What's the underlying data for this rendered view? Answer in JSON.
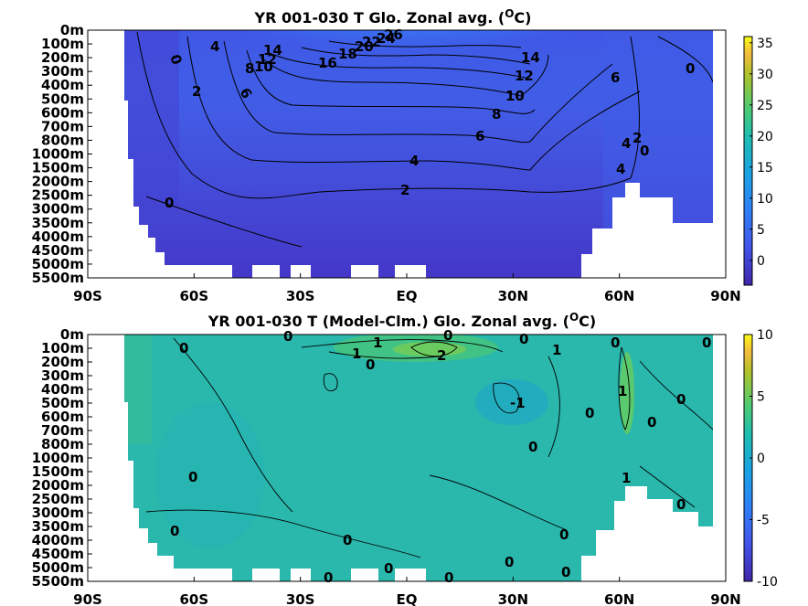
{
  "chart_data": [
    {
      "type": "heatmap",
      "title_main": "YR 001-030 T Glo. Zonal avg. (",
      "title_sup": "O",
      "title_tail": "C)",
      "x_ticks": [
        "90S",
        "60S",
        "30S",
        "EQ",
        "30N",
        "60N",
        "90N"
      ],
      "x_range": [
        -90,
        90
      ],
      "y_ticks": [
        "0m",
        "100m",
        "200m",
        "300m",
        "400m",
        "500m",
        "600m",
        "700m",
        "800m",
        "1000m",
        "1500m",
        "2000m",
        "2500m",
        "3000m",
        "3500m",
        "4000m",
        "4500m",
        "5000m",
        "5500m"
      ],
      "colorbar_ticks": [
        "35",
        "30",
        "25",
        "20",
        "15",
        "10",
        "5",
        "0"
      ],
      "colorbar_range": [
        -4,
        36
      ],
      "contour_labels": [
        "0",
        "2",
        "4",
        "6",
        "8",
        "10",
        "12",
        "14",
        "16",
        "18",
        "20",
        "22",
        "24",
        "26",
        "6",
        "8",
        "10",
        "12",
        "14",
        "4",
        "2",
        "0",
        "0",
        "6",
        "4",
        "2",
        "4",
        "0"
      ],
      "colors": {
        "low": "#3e26a8",
        "high": "#f9fb15",
        "land": "#ffffff"
      }
    },
    {
      "type": "heatmap",
      "title_main": "YR 001-030 T (Model-Clm.) Glo. Zonal avg. (",
      "title_sup": "O",
      "title_tail": "C)",
      "x_ticks": [
        "90S",
        "60S",
        "30S",
        "EQ",
        "30N",
        "60N",
        "90N"
      ],
      "x_range": [
        -90,
        90
      ],
      "y_ticks": [
        "0m",
        "100m",
        "200m",
        "300m",
        "400m",
        "500m",
        "600m",
        "700m",
        "800m",
        "1000m",
        "1500m",
        "2000m",
        "2500m",
        "3000m",
        "3500m",
        "4000m",
        "4500m",
        "5000m",
        "5500m"
      ],
      "colorbar_ticks": [
        "10",
        "5",
        "0",
        "-5",
        "-10"
      ],
      "colorbar_range": [
        -10,
        10
      ],
      "contour_labels": [
        "0",
        "0",
        "1",
        "1",
        "2",
        "0",
        "0",
        "0",
        "1",
        "0",
        "-1",
        "0",
        "1",
        "0",
        "0",
        "0",
        "0",
        "0",
        "0",
        "0",
        "0",
        "0",
        "0",
        "0",
        "0",
        "1",
        "0",
        "0"
      ],
      "colors": {
        "low": "#3e26a8",
        "high": "#f9fb15",
        "land": "#ffffff"
      }
    }
  ]
}
